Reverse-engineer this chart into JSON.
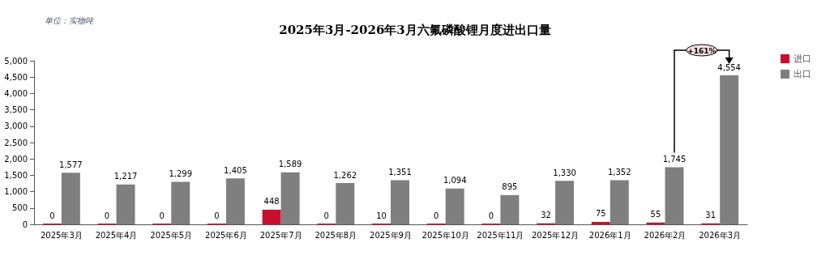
{
  "chart_data": {
    "type": "bar",
    "title": "2025年3月-2026年3月六氟磷酸锂月度进出口量",
    "ylabel": "单位：实物吨",
    "categories": [
      "2025年3月",
      "2025年4月",
      "2025年5月",
      "2025年6月",
      "2025年7月",
      "2025年8月",
      "2025年9月",
      "2025年10月",
      "2025年11月",
      "2025年12月",
      "2026年1月",
      "2026年2月",
      "2026年3月"
    ],
    "series": [
      {
        "name": "进口",
        "color": "#c8102e",
        "values": [
          0,
          0,
          0,
          0,
          448,
          0,
          10,
          0,
          0,
          32,
          75,
          55,
          31
        ],
        "value_labels": [
          "0",
          "0",
          "0",
          "0",
          "448",
          "0",
          "10",
          "0",
          "0",
          "32",
          "75",
          "55",
          "31"
        ]
      },
      {
        "name": "出口",
        "color": "#7f7f7f",
        "values": [
          1577,
          1217,
          1299,
          1405,
          1589,
          1262,
          1351,
          1094,
          895,
          1330,
          1352,
          1745,
          4554
        ],
        "value_labels": [
          "1,577",
          "1,217",
          "1,299",
          "1,405",
          "1,589",
          "1,262",
          "1,351",
          "1,094",
          "895",
          "1,330",
          "1,352",
          "1,745",
          "4,554"
        ]
      }
    ],
    "ylim": [
      0,
      5000
    ],
    "yticks": [
      {
        "value": 0,
        "label": "0"
      },
      {
        "value": 500,
        "label": "500"
      },
      {
        "value": 1000,
        "label": "1,000"
      },
      {
        "value": 1500,
        "label": "1,500"
      },
      {
        "value": 2000,
        "label": "2,000"
      },
      {
        "value": 2500,
        "label": "2,500"
      },
      {
        "value": 3000,
        "label": "3,000"
      },
      {
        "value": 3500,
        "label": "3,500"
      },
      {
        "value": 4000,
        "label": "4,000"
      },
      {
        "value": 4500,
        "label": "4,500"
      },
      {
        "value": 5000,
        "label": "5,000"
      }
    ],
    "grid": false,
    "legend": "top right",
    "annotations": [
      {
        "text": "+161%",
        "x": "2026年3月",
        "y": 4554
      }
    ]
  }
}
